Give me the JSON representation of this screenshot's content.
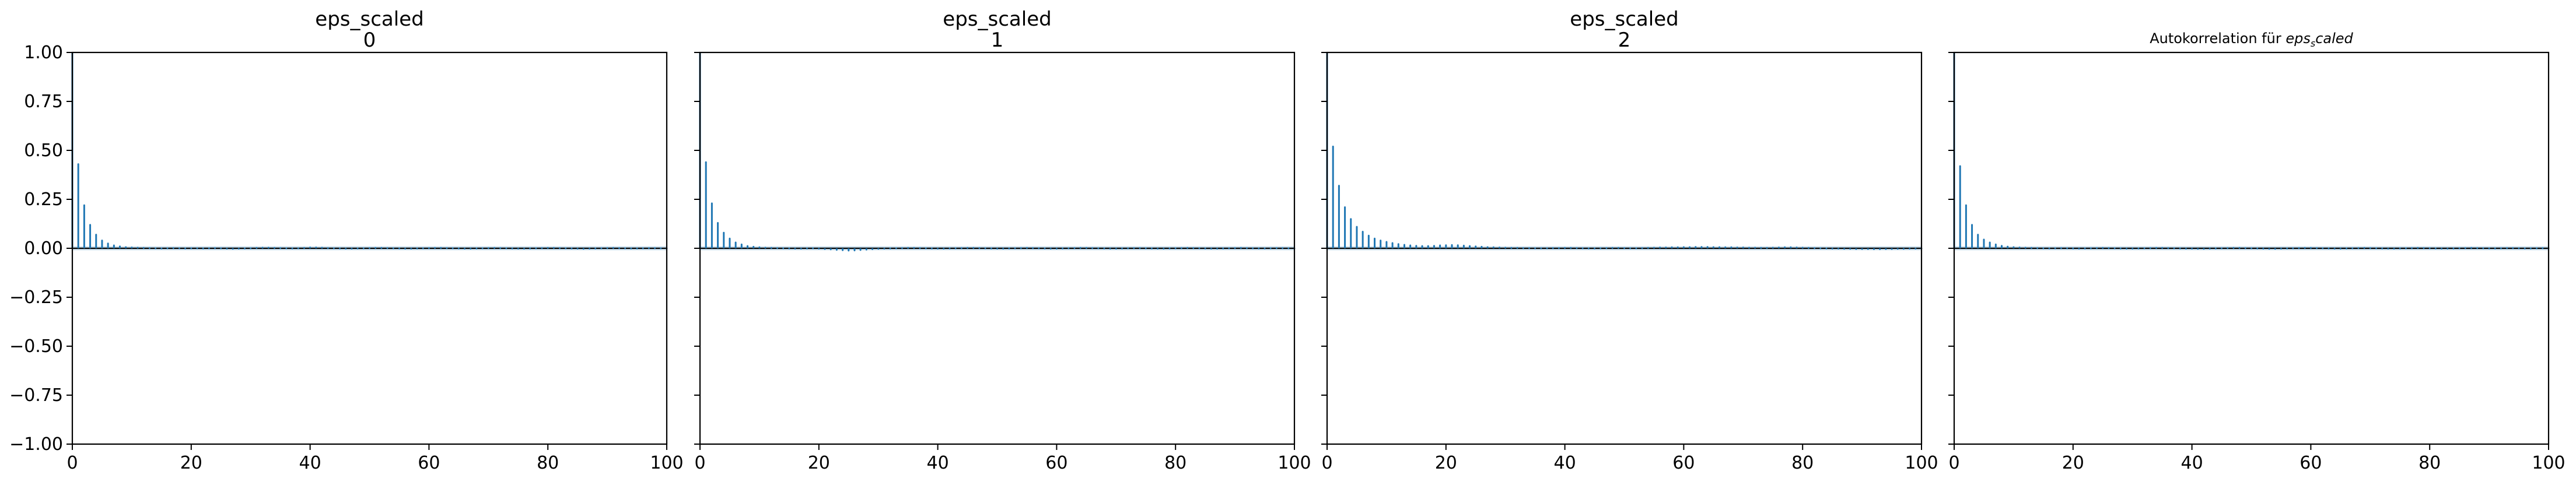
{
  "chart_data": [
    {
      "type": "bar",
      "title": "eps_scaled\n0",
      "xlim": [
        0,
        100
      ],
      "ylim": [
        -1.0,
        1.0
      ],
      "xticks": [
        "0",
        "20",
        "40",
        "60",
        "80",
        "100"
      ],
      "yticks": [
        "1.00",
        "0.75",
        "0.50",
        "0.25",
        "0.00",
        "−0.25",
        "−0.50",
        "−0.75",
        "−1.00"
      ],
      "grid": false,
      "lags": [
        0,
        1,
        2,
        3,
        4,
        5,
        6,
        7,
        8,
        9,
        10,
        11,
        12,
        13,
        14,
        15,
        16,
        17,
        18,
        19,
        20,
        21,
        22,
        23,
        24,
        25,
        26,
        27,
        28,
        29,
        30,
        31,
        32,
        33,
        34,
        35,
        36,
        37,
        38,
        39,
        40,
        41,
        42,
        43,
        44,
        45,
        46,
        47,
        48,
        49,
        50,
        51,
        52,
        53,
        54,
        55,
        56,
        57,
        58,
        59,
        60,
        61,
        62,
        63,
        64,
        65,
        66,
        67,
        68,
        69,
        70,
        71,
        72,
        73,
        74,
        75,
        76,
        77,
        78,
        79,
        80,
        81,
        82,
        83,
        84,
        85,
        86,
        87,
        88,
        89,
        90,
        91,
        92,
        93,
        94,
        95,
        96,
        97,
        98,
        99,
        100
      ],
      "values": [
        1.0,
        0.43,
        0.22,
        0.12,
        0.07,
        0.04,
        0.025,
        0.015,
        0.01,
        0.006,
        0.004,
        0.003,
        0.002,
        0.001,
        0.0,
        -0.001,
        0.0,
        0.001,
        0.0,
        -0.001,
        0.0,
        0.0,
        -0.001,
        0.0,
        0.001,
        0.0,
        -0.002,
        -0.003,
        -0.002,
        -0.001,
        0.0,
        0.002,
        0.003,
        0.003,
        0.002,
        0.001,
        0.0,
        -0.001,
        0.0,
        0.002,
        0.004,
        0.004,
        0.003,
        0.001,
        0.0,
        -0.001,
        -0.002,
        -0.002,
        -0.001,
        0.0,
        0.001,
        0.002,
        0.002,
        0.001,
        0.0,
        -0.001,
        -0.002,
        -0.002,
        -0.001,
        0.0,
        0.001,
        0.002,
        0.002,
        0.001,
        0.0,
        -0.001,
        -0.002,
        -0.002,
        -0.001,
        0.0,
        0.001,
        0.002,
        0.001,
        0.0,
        -0.001,
        -0.002,
        -0.002,
        -0.001,
        0.0,
        0.001,
        0.002,
        0.002,
        0.001,
        0.0,
        -0.001,
        -0.002,
        -0.003,
        -0.002,
        -0.001,
        0.0,
        0.001,
        0.002,
        0.001,
        0.0,
        -0.001,
        -0.001,
        0.0,
        0.001,
        0.001,
        0.0,
        -0.001
      ]
    },
    {
      "type": "bar",
      "title": "eps_scaled\n1",
      "xlim": [
        0,
        100
      ],
      "ylim": [
        -1.0,
        1.0
      ],
      "xticks": [
        "0",
        "20",
        "40",
        "60",
        "80",
        "100"
      ],
      "grid": false,
      "lags": [
        0,
        1,
        2,
        3,
        4,
        5,
        6,
        7,
        8,
        9,
        10,
        11,
        12,
        13,
        14,
        15,
        16,
        17,
        18,
        19,
        20,
        21,
        22,
        23,
        24,
        25,
        26,
        27,
        28,
        29,
        30,
        31,
        32,
        33,
        34,
        35,
        36,
        37,
        38,
        39,
        40,
        41,
        42,
        43,
        44,
        45,
        46,
        47,
        48,
        49,
        50,
        51,
        52,
        53,
        54,
        55,
        56,
        57,
        58,
        59,
        60,
        61,
        62,
        63,
        64,
        65,
        66,
        67,
        68,
        69,
        70,
        71,
        72,
        73,
        74,
        75,
        76,
        77,
        78,
        79,
        80,
        81,
        82,
        83,
        84,
        85,
        86,
        87,
        88,
        89,
        90,
        91,
        92,
        93,
        94,
        95,
        96,
        97,
        98,
        99,
        100
      ],
      "values": [
        1.0,
        0.44,
        0.23,
        0.13,
        0.08,
        0.05,
        0.03,
        0.02,
        0.012,
        0.008,
        0.005,
        0.003,
        0.002,
        0.001,
        0.0,
        -0.001,
        -0.002,
        -0.002,
        -0.001,
        0.0,
        -0.002,
        -0.004,
        -0.006,
        -0.008,
        -0.01,
        -0.012,
        -0.011,
        -0.009,
        -0.007,
        -0.005,
        -0.003,
        -0.002,
        -0.001,
        0.0,
        0.001,
        0.002,
        0.002,
        0.001,
        0.0,
        -0.001,
        -0.002,
        -0.002,
        -0.001,
        0.0,
        0.001,
        0.002,
        0.002,
        0.001,
        0.0,
        -0.001,
        -0.002,
        -0.002,
        -0.001,
        0.0,
        0.001,
        0.002,
        0.001,
        0.0,
        -0.001,
        -0.002,
        -0.002,
        -0.001,
        0.0,
        0.001,
        0.002,
        0.002,
        0.001,
        0.0,
        -0.001,
        -0.002,
        -0.002,
        -0.001,
        0.0,
        0.001,
        0.001,
        0.0,
        -0.001,
        -0.002,
        -0.002,
        -0.001,
        0.0,
        0.001,
        0.002,
        0.001,
        0.0,
        -0.001,
        -0.002,
        -0.002,
        -0.001,
        0.0,
        0.001,
        0.002,
        0.001,
        0.0,
        -0.001,
        -0.001,
        0.0,
        0.001,
        0.001,
        0.0,
        -0.001
      ]
    },
    {
      "type": "bar",
      "title": "eps_scaled\n2",
      "xlim": [
        0,
        100
      ],
      "ylim": [
        -1.0,
        1.0
      ],
      "xticks": [
        "0",
        "20",
        "40",
        "60",
        "80",
        "100"
      ],
      "grid": false,
      "lags": [
        0,
        1,
        2,
        3,
        4,
        5,
        6,
        7,
        8,
        9,
        10,
        11,
        12,
        13,
        14,
        15,
        16,
        17,
        18,
        19,
        20,
        21,
        22,
        23,
        24,
        25,
        26,
        27,
        28,
        29,
        30,
        31,
        32,
        33,
        34,
        35,
        36,
        37,
        38,
        39,
        40,
        41,
        42,
        43,
        44,
        45,
        46,
        47,
        48,
        49,
        50,
        51,
        52,
        53,
        54,
        55,
        56,
        57,
        58,
        59,
        60,
        61,
        62,
        63,
        64,
        65,
        66,
        67,
        68,
        69,
        70,
        71,
        72,
        73,
        74,
        75,
        76,
        77,
        78,
        79,
        80,
        81,
        82,
        83,
        84,
        85,
        86,
        87,
        88,
        89,
        90,
        91,
        92,
        93,
        94,
        95,
        96,
        97,
        98,
        99,
        100
      ],
      "values": [
        1.0,
        0.52,
        0.32,
        0.21,
        0.15,
        0.11,
        0.085,
        0.065,
        0.05,
        0.04,
        0.033,
        0.027,
        0.022,
        0.018,
        0.015,
        0.013,
        0.012,
        0.012,
        0.013,
        0.015,
        0.016,
        0.017,
        0.016,
        0.014,
        0.012,
        0.01,
        0.008,
        0.006,
        0.005,
        0.004,
        0.003,
        0.002,
        0.002,
        0.001,
        0.001,
        0.0,
        0.0,
        0.0,
        0.001,
        0.001,
        0.002,
        0.002,
        0.001,
        0.0,
        -0.001,
        -0.001,
        0.0,
        0.001,
        0.002,
        0.002,
        0.001,
        0.0,
        0.0,
        0.001,
        0.002,
        0.003,
        0.004,
        0.004,
        0.005,
        0.005,
        0.006,
        0.006,
        0.007,
        0.007,
        0.007,
        0.006,
        0.006,
        0.005,
        0.005,
        0.004,
        0.004,
        0.003,
        0.003,
        0.002,
        0.002,
        0.003,
        0.004,
        0.005,
        0.005,
        0.004,
        0.003,
        0.002,
        0.001,
        0.0,
        -0.001,
        -0.002,
        -0.002,
        -0.003,
        -0.003,
        -0.004,
        -0.004,
        -0.004,
        -0.005,
        -0.005,
        -0.004,
        -0.004,
        -0.003,
        -0.003,
        -0.002,
        -0.002,
        -0.001
      ]
    },
    {
      "type": "bar",
      "title": "Autokorrelation für eps_scaled",
      "title_parts": {
        "prefix": "Autokorrelation für ",
        "math_main": "eps",
        "math_sub": "s",
        "math_rest": "caled"
      },
      "xlim": [
        0,
        100
      ],
      "ylim": [
        -1.0,
        1.0
      ],
      "xticks": [
        "0",
        "20",
        "40",
        "60",
        "80",
        "100"
      ],
      "grid": false,
      "lags": [
        0,
        1,
        2,
        3,
        4,
        5,
        6,
        7,
        8,
        9,
        10,
        11,
        12,
        13,
        14,
        15,
        16,
        17,
        18,
        19,
        20,
        21,
        22,
        23,
        24,
        25,
        26,
        27,
        28,
        29,
        30,
        31,
        32,
        33,
        34,
        35,
        36,
        37,
        38,
        39,
        40,
        41,
        42,
        43,
        44,
        45,
        46,
        47,
        48,
        49,
        50,
        51,
        52,
        53,
        54,
        55,
        56,
        57,
        58,
        59,
        60,
        61,
        62,
        63,
        64,
        65,
        66,
        67,
        68,
        69,
        70,
        71,
        72,
        73,
        74,
        75,
        76,
        77,
        78,
        79,
        80,
        81,
        82,
        83,
        84,
        85,
        86,
        87,
        88,
        89,
        90,
        91,
        92,
        93,
        94,
        95,
        96,
        97,
        98,
        99,
        100
      ],
      "values": [
        1.0,
        0.42,
        0.22,
        0.12,
        0.07,
        0.045,
        0.03,
        0.02,
        0.013,
        0.009,
        0.006,
        0.004,
        0.003,
        0.002,
        0.001,
        0.0,
        -0.001,
        0.0,
        0.001,
        0.0,
        -0.001,
        -0.002,
        -0.001,
        0.0,
        0.001,
        0.002,
        0.001,
        0.0,
        -0.001,
        -0.002,
        -0.002,
        -0.001,
        0.0,
        0.001,
        0.002,
        0.002,
        0.001,
        0.0,
        -0.001,
        -0.002,
        -0.002,
        -0.003,
        -0.003,
        -0.002,
        -0.001,
        0.0,
        0.001,
        0.002,
        0.002,
        0.001,
        0.0,
        -0.001,
        -0.002,
        -0.003,
        -0.003,
        -0.002,
        -0.001,
        0.0,
        0.001,
        0.002,
        0.002,
        0.001,
        0.0,
        -0.001,
        -0.002,
        -0.002,
        -0.001,
        0.0,
        0.001,
        0.002,
        0.001,
        0.0,
        -0.001,
        -0.002,
        -0.002,
        -0.001,
        0.0,
        0.001,
        0.002,
        0.001,
        0.0,
        -0.001,
        -0.002,
        -0.002,
        -0.001,
        0.0,
        0.001,
        0.002,
        0.001,
        0.0,
        -0.001,
        -0.001,
        0.0,
        0.001,
        0.001,
        0.0,
        -0.001,
        -0.001,
        0.0,
        0.001,
        0.0
      ]
    }
  ],
  "colors": {
    "bars": "#1f77b4",
    "baseline": "#000000",
    "confidence_band": "#1f77b4"
  }
}
